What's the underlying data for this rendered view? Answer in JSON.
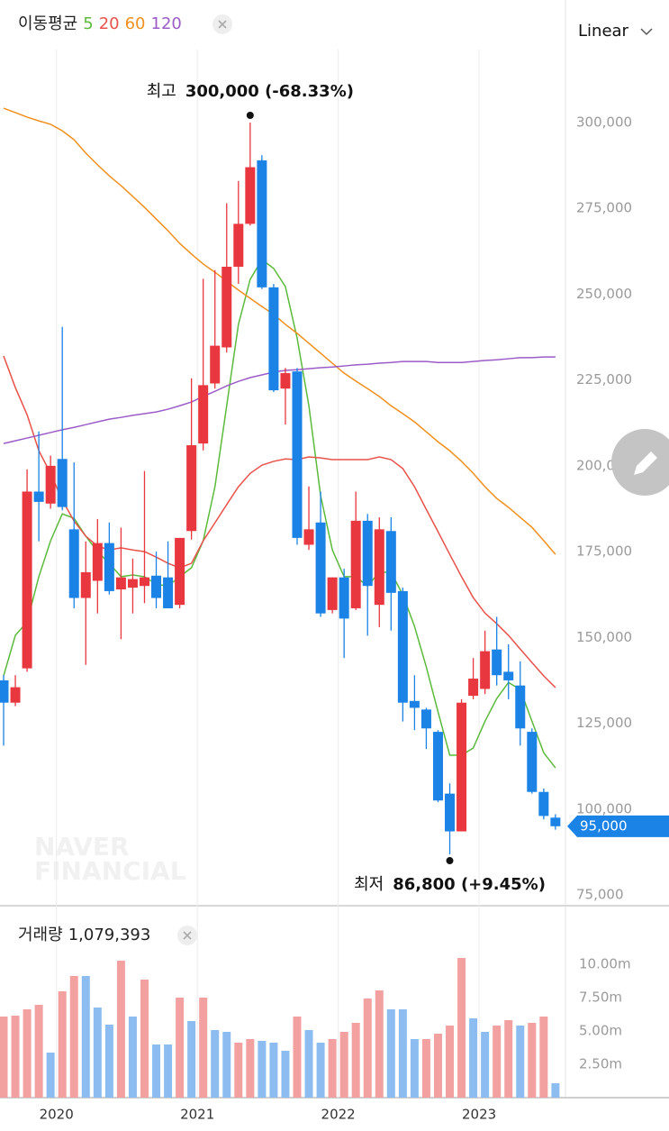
{
  "chart_data": {
    "type": "candlestick",
    "legend_title": "이동평균",
    "scale": "Linear",
    "watermark": [
      "NAVER",
      "FINANCIAL"
    ],
    "up_color": "#e8373f",
    "down_color": "#1b82e6",
    "grid": false,
    "categories": [
      null,
      null,
      null,
      null,
      null,
      "2020",
      null,
      null,
      null,
      null,
      null,
      null,
      null,
      null,
      null,
      null,
      null,
      "2021",
      null,
      null,
      null,
      null,
      null,
      null,
      null,
      null,
      null,
      null,
      null,
      "2022",
      null,
      null,
      null,
      null,
      null,
      null,
      null,
      null,
      null,
      null,
      null,
      "2023",
      null,
      null,
      null,
      null,
      null,
      null
    ],
    "open": [
      137500,
      131000,
      141000,
      192500,
      189000,
      202000,
      181500,
      161500,
      166500,
      177500,
      164000,
      164500,
      165000,
      168000,
      167500,
      159500,
      181000,
      206500,
      224000,
      234500,
      258000,
      270500,
      289000,
      252000,
      222500,
      227500,
      177000,
      183500,
      158000,
      167500,
      158500,
      184000,
      159500,
      181000,
      163500,
      131500,
      129000,
      122500,
      104500,
      93500,
      133000,
      135000,
      146500,
      140000,
      136000,
      122500,
      105000,
      97500
    ],
    "high": [
      139000,
      139000,
      199000,
      210000,
      203000,
      240500,
      201000,
      178000,
      184500,
      183500,
      182000,
      173000,
      198500,
      175000,
      178000,
      179000,
      225500,
      254500,
      257000,
      276500,
      283000,
      300000,
      290500,
      253000,
      228500,
      228500,
      194000,
      192500,
      167500,
      170000,
      192500,
      186000,
      185000,
      185000,
      164500,
      139000,
      129500,
      123000,
      107500,
      132000,
      144000,
      152000,
      156000,
      148000,
      143000,
      123500,
      106000,
      98500
    ],
    "low": [
      118500,
      130000,
      140000,
      178000,
      187500,
      187000,
      158500,
      142000,
      157000,
      162500,
      149500,
      157000,
      160000,
      158500,
      158500,
      158500,
      178500,
      204500,
      222500,
      233000,
      253000,
      270000,
      251500,
      221500,
      212000,
      177000,
      175500,
      156000,
      157000,
      144000,
      158000,
      150500,
      153000,
      152000,
      125500,
      123000,
      117500,
      102000,
      86800,
      93500,
      132000,
      133500,
      136000,
      132000,
      118500,
      104500,
      97000,
      94000
    ],
    "close": [
      131000,
      135500,
      192500,
      189500,
      200000,
      188000,
      161500,
      169000,
      177500,
      163500,
      167500,
      167000,
      167500,
      161500,
      158500,
      179000,
      206000,
      223500,
      235000,
      258000,
      270500,
      287000,
      252000,
      222000,
      227000,
      179000,
      181500,
      157000,
      167500,
      155500,
      184000,
      165000,
      181500,
      163000,
      131000,
      129500,
      123500,
      102500,
      93500,
      131000,
      138000,
      146000,
      139000,
      137500,
      123500,
      105000,
      98000,
      95000
    ],
    "ylim": [
      71850,
      321270
    ],
    "yticks": [
      {
        "value": 75000,
        "label": "75,000"
      },
      {
        "value": 100000,
        "label": "100,000"
      },
      {
        "value": 125000,
        "label": "125,000"
      },
      {
        "value": 150000,
        "label": "150,000"
      },
      {
        "value": 175000,
        "label": "175,000"
      },
      {
        "value": 200000,
        "label": "200,000"
      },
      {
        "value": 225000,
        "label": "225,000"
      },
      {
        "value": 250000,
        "label": "250,000"
      },
      {
        "value": 275000,
        "label": "275,000"
      },
      {
        "value": 300000,
        "label": "300,000"
      }
    ],
    "moving_averages": [
      {
        "name": "5",
        "color": "#5cba3c",
        "values": [
          138800,
          150600,
          154500,
          167700,
          178150,
          186000,
          184700,
          179500,
          175000,
          171600,
          167700,
          168200,
          167700,
          165500,
          165000,
          167700,
          170300,
          178150,
          193900,
          217500,
          241200,
          254300,
          260100,
          257500,
          252200,
          237200,
          217500,
          191300,
          175500,
          167700,
          167700,
          165000,
          169000,
          169000,
          162400,
          153200,
          141400,
          128300,
          115700,
          115700,
          117800,
          125600,
          132200,
          136900,
          134800,
          125600,
          116400,
          112000
        ]
      },
      {
        "name": "20",
        "color": "#e8524a",
        "values": [
          232000,
          222800,
          214900,
          204400,
          197800,
          190000,
          183900,
          179500,
          176600,
          175500,
          176100,
          175500,
          175000,
          173400,
          171600,
          170300,
          171600,
          178150,
          183400,
          188700,
          193900,
          197800,
          200200,
          201300,
          202000,
          201800,
          202600,
          202300,
          201800,
          201800,
          201800,
          201800,
          202600,
          201800,
          199200,
          193900,
          187300,
          180800,
          174200,
          167700,
          161600,
          157100,
          154000,
          150600,
          146600,
          142700,
          138800,
          135400
        ]
      },
      {
        "name": "60",
        "color": "#f0901e",
        "values": [
          304200,
          302900,
          301600,
          300500,
          299500,
          297600,
          295000,
          291100,
          287700,
          284500,
          281600,
          278500,
          275300,
          271900,
          268500,
          264800,
          261700,
          258800,
          256400,
          253800,
          251200,
          248800,
          246400,
          244100,
          241200,
          238600,
          235700,
          232800,
          229900,
          227000,
          224700,
          222500,
          220200,
          217500,
          215200,
          212800,
          209900,
          207000,
          204400,
          201300,
          197800,
          193900,
          190500,
          187900,
          185000,
          182100,
          178200,
          174200
        ]
      },
      {
        "name": "120",
        "color": "#9b5cc8",
        "values": [
          206500,
          207300,
          208100,
          208900,
          209700,
          210500,
          211200,
          212000,
          212800,
          213600,
          214100,
          214700,
          215200,
          215700,
          216500,
          217500,
          218600,
          220200,
          221700,
          223300,
          224600,
          225700,
          226500,
          227300,
          227800,
          228000,
          228300,
          228600,
          228800,
          229100,
          229400,
          229600,
          229900,
          230100,
          230400,
          230400,
          230400,
          230100,
          230100,
          230100,
          230400,
          230700,
          230900,
          231200,
          231500,
          231500,
          231700,
          231700
        ]
      }
    ],
    "annotations": [
      {
        "label": "최고",
        "text": "300,000 (-68.33%)",
        "value": 300000
      },
      {
        "label": "최저",
        "text": "86,800 (+9.45%)",
        "value": 86800
      }
    ],
    "last_price": {
      "value": 95000,
      "label": "95,000"
    },
    "volume": {
      "title": "거래량",
      "current_label": "1,079,393",
      "values": [
        6081000,
        6149000,
        6622000,
        6960000,
        3378000,
        7973000,
        9122000,
        9122000,
        6757000,
        5473000,
        10270000,
        6081000,
        8851000,
        3986000,
        3986000,
        7500000,
        5743000,
        7500000,
        5068000,
        4932000,
        4122000,
        4392000,
        4257000,
        4122000,
        3514000,
        6081000,
        5068000,
        4122000,
        4392000,
        4932000,
        5608000,
        7432000,
        8041000,
        6622000,
        6622000,
        4392000,
        4392000,
        4797000,
        5405000,
        10473000,
        5946000,
        4932000,
        5405000,
        5811000,
        5405000,
        5608000,
        6081000,
        1079393
      ],
      "colors": [
        "#f2a0a0",
        "#f2a0a0",
        "#f2a0a0",
        "#f2a0a0",
        "#8dbdf0",
        "#f2a0a0",
        "#f2a0a0",
        "#8dbdf0",
        "#8dbdf0",
        "#8dbdf0",
        "#f2a0a0",
        "#8dbdf0",
        "#f2a0a0",
        "#8dbdf0",
        "#8dbdf0",
        "#f2a0a0",
        "#8dbdf0",
        "#f2a0a0",
        "#8dbdf0",
        "#8dbdf0",
        "#f2a0a0",
        "#f2a0a0",
        "#8dbdf0",
        "#8dbdf0",
        "#8dbdf0",
        "#f2a0a0",
        "#8dbdf0",
        "#8dbdf0",
        "#f2a0a0",
        "#f2a0a0",
        "#f2a0a0",
        "#f2a0a0",
        "#f2a0a0",
        "#8dbdf0",
        "#8dbdf0",
        "#8dbdf0",
        "#f2a0a0",
        "#f2a0a0",
        "#f2a0a0",
        "#f2a0a0",
        "#8dbdf0",
        "#8dbdf0",
        "#f2a0a0",
        "#f2a0a0",
        "#8dbdf0",
        "#f2a0a0",
        "#f2a0a0",
        "#8dbdf0"
      ],
      "ylim": [
        0,
        11350000
      ],
      "yticks": [
        {
          "value": 2500000,
          "label": "2.50m"
        },
        {
          "value": 5000000,
          "label": "5.00m"
        },
        {
          "value": 7500000,
          "label": "7.50m"
        },
        {
          "value": 10000000,
          "label": "10.00m"
        }
      ]
    }
  }
}
